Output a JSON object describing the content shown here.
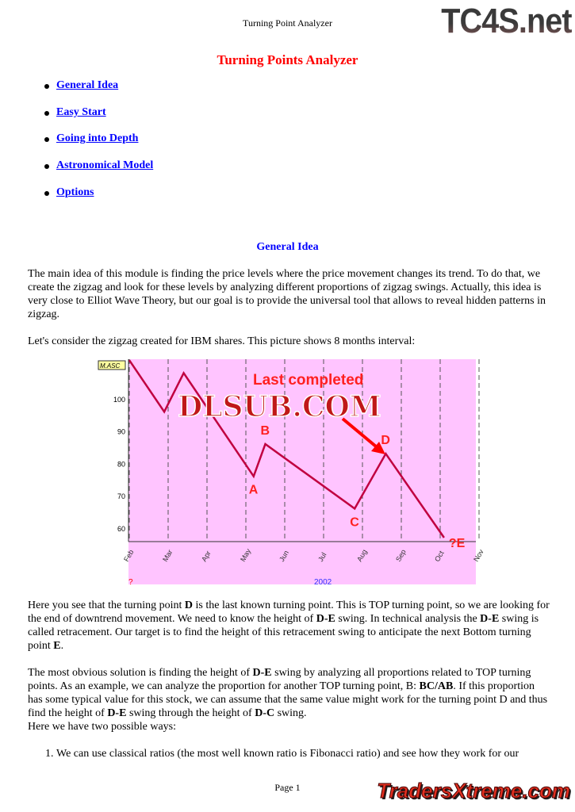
{
  "header": {
    "running_title": "Turning Point Analyzer",
    "logo_text": "TC4S.net"
  },
  "title": "Turning Points Analyzer",
  "toc": [
    {
      "label": "General Idea"
    },
    {
      "label": "Easy Start"
    },
    {
      "label": "Going into Depth"
    },
    {
      "label": "Astronomical Model"
    },
    {
      "label": "Options"
    }
  ],
  "section_title": "General Idea",
  "paragraphs": [
    "The main idea of this module is finding the price levels where the price movement changes its trend. To do that, we create the zigzag and look for these levels by analyzing different proportions of zigzag swings. Actually, this idea is very close to Elliot Wave Theory, but our goal is to provide the universal tool that allows to reveal hidden patterns in zigzag.",
    "Let's consider the zigzag created for IBM shares. This picture shows 8 months interval:"
  ],
  "figure": {
    "tag": "M.ASC",
    "annotation": "Last completed",
    "watermark": "DLSUB.COM",
    "year_label": "2002",
    "corner_label": "?",
    "y_ticks": [
      100,
      90,
      80,
      70,
      60
    ],
    "x_ticks": [
      "Feb",
      "Mar",
      "Apr",
      "May",
      "Jun",
      "Jul",
      "Aug",
      "Sep",
      "Oct",
      "Nov"
    ],
    "zigzag": [
      {
        "month": 0,
        "price": 112,
        "label": ""
      },
      {
        "month": 0.9,
        "price": 96,
        "label": ""
      },
      {
        "month": 1.4,
        "price": 108,
        "label": ""
      },
      {
        "month": 3.2,
        "price": 76,
        "label": "A"
      },
      {
        "month": 3.5,
        "price": 86,
        "label": "B"
      },
      {
        "month": 5.8,
        "price": 66,
        "label": "C"
      },
      {
        "month": 6.6,
        "price": 83,
        "label": "D"
      },
      {
        "month": 8.1,
        "price": 57,
        "label": "?E"
      }
    ],
    "colors": {
      "background": "#ffc4ff",
      "zigzag": "#c00040",
      "labels": "#ff2020"
    }
  },
  "p3": {
    "a": "Here you see that the turning point ",
    "b": "D",
    "c": " is the last known turning point. This is TOP turning point, so we are looking for the end of downtrend movement. We need to know the height of ",
    "d": "D-E",
    "e": " swing. In technical analysis the ",
    "f": "D-E",
    "g": " swing is called retracement. Our target is to find the height of this retracement swing to anticipate the next Bottom turning point ",
    "h": "E",
    "i": "."
  },
  "p4": {
    "a": "The most obvious solution is finding the height of ",
    "b": "D-E",
    "c": " swing by analyzing all proportions related to TOP turning points. As an example, we can analyze the proportion for another TOP turning point, B: ",
    "d": "BC/AB",
    "e": ". If this proportion has some typical value for this stock, we can assume that the same value might work for the turning point D and thus find the height of ",
    "f": "D-E",
    "g": " swing through the height of ",
    "h": "D-C",
    "i": " swing.",
    "j": "Here we have two possible ways:"
  },
  "list": [
    "We can use classical ratios (the most well known ratio is Fibonacci ratio) and see how they work for our"
  ],
  "footer": {
    "page": "Page 1",
    "logo_text": "TradersXtreme.com"
  }
}
